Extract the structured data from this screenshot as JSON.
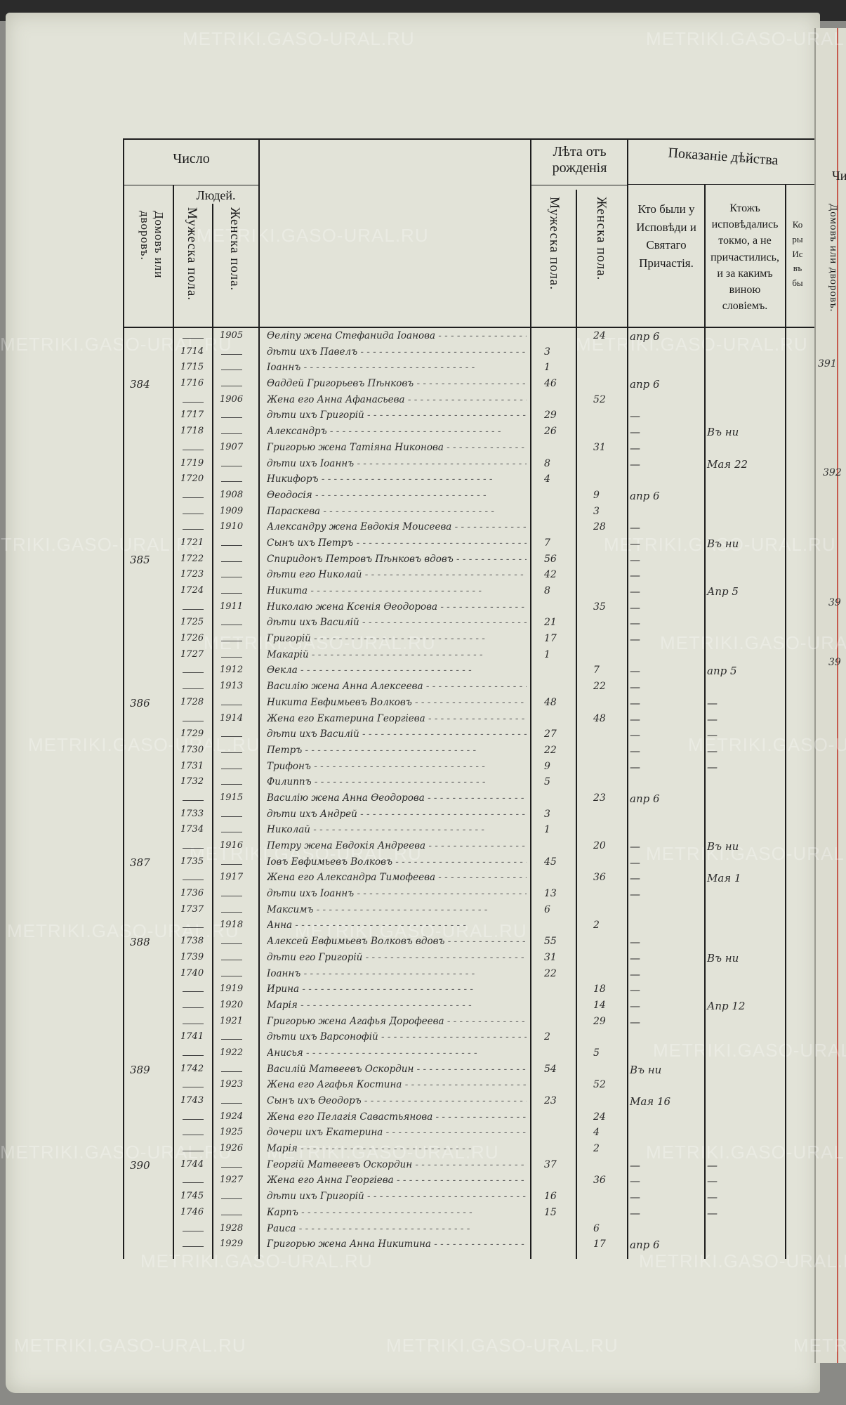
{
  "watermark": "METRIKI.GASO-URAL.RU",
  "header": {
    "chislo": "Число",
    "lyudey": "Людей.",
    "domov": "Домовъ или дворовъ.",
    "muzh": "Мужеска пола.",
    "zhen": "Женска пола.",
    "leta": "Лѣта отъ рожденія",
    "leta_muzh": "Мужеска пола.",
    "leta_zhen": "Женска пола.",
    "pokazanie": "Показаніе дѣйства",
    "kto_byli": "Кто были у Исповѣди и Святаго Причастія.",
    "ktozh": "Ктожъ исповѣдались токмо, а не причастились, и за какимъ виною словіемъ.",
    "koi_fragment": "Ко ры Ис въ бы"
  },
  "right_page": {
    "chislo_fragment": "Чи",
    "domov": "Домовъ или дворовъ.",
    "house_numbers": [
      "391",
      "392",
      "39",
      "39"
    ]
  },
  "rows": [
    {
      "h": "",
      "m": "",
      "f": "1905",
      "name": "Ѳеліпу жена Стефанида Іоанова",
      "ma": "",
      "fa": "24",
      "conf": "апр 6",
      "note": ""
    },
    {
      "h": "",
      "m": "1714",
      "f": "",
      "name": "дѣти ихъ Павелъ",
      "ma": "3",
      "fa": "",
      "conf": "",
      "note": ""
    },
    {
      "h": "",
      "m": "1715",
      "f": "",
      "name": "Іоаннъ",
      "ma": "1",
      "fa": "",
      "conf": "",
      "note": ""
    },
    {
      "h": "384",
      "m": "1716",
      "f": "",
      "name": "Ѳаддей Григорьевъ Пѣнковъ",
      "ma": "46",
      "fa": "",
      "conf": "апр 6",
      "note": ""
    },
    {
      "h": "",
      "m": "",
      "f": "1906",
      "name": "Жена его Анна Афанасьева",
      "ma": "",
      "fa": "52",
      "conf": "",
      "note": ""
    },
    {
      "h": "",
      "m": "1717",
      "f": "",
      "name": "дѣти ихъ Григорій",
      "ma": "29",
      "fa": "",
      "conf": "—",
      "note": ""
    },
    {
      "h": "",
      "m": "1718",
      "f": "",
      "name": "Александръ",
      "ma": "26",
      "fa": "",
      "conf": "—",
      "note": "Въ ни"
    },
    {
      "h": "",
      "m": "",
      "f": "1907",
      "name": "Григорью жена Татіяна Никонова",
      "ma": "",
      "fa": "31",
      "conf": "—",
      "note": ""
    },
    {
      "h": "",
      "m": "1719",
      "f": "",
      "name": "дѣти ихъ Іоаннъ",
      "ma": "8",
      "fa": "",
      "conf": "—",
      "note": "Мая 22"
    },
    {
      "h": "",
      "m": "1720",
      "f": "",
      "name": "Никифоръ",
      "ma": "4",
      "fa": "",
      "conf": "",
      "note": ""
    },
    {
      "h": "",
      "m": "",
      "f": "1908",
      "name": "Ѳеодосія",
      "ma": "",
      "fa": "9",
      "conf": "апр 6",
      "note": ""
    },
    {
      "h": "",
      "m": "",
      "f": "1909",
      "name": "Параскева",
      "ma": "",
      "fa": "3",
      "conf": "",
      "note": ""
    },
    {
      "h": "",
      "m": "",
      "f": "1910",
      "name": "Александру жена Евдокія Моисеева",
      "ma": "",
      "fa": "28",
      "conf": "—",
      "note": ""
    },
    {
      "h": "",
      "m": "1721",
      "f": "",
      "name": "Сынъ ихъ Петръ",
      "ma": "7",
      "fa": "",
      "conf": "—",
      "note": "Въ ни"
    },
    {
      "h": "385",
      "m": "1722",
      "f": "",
      "name": "Спиридонъ Петровъ Пѣнковъ вдовъ",
      "ma": "56",
      "fa": "",
      "conf": "—",
      "note": ""
    },
    {
      "h": "",
      "m": "1723",
      "f": "",
      "name": "дѣти его Николай",
      "ma": "42",
      "fa": "",
      "conf": "—",
      "note": ""
    },
    {
      "h": "",
      "m": "1724",
      "f": "",
      "name": "Никита",
      "ma": "8",
      "fa": "",
      "conf": "—",
      "note": "Апр 5"
    },
    {
      "h": "",
      "m": "",
      "f": "1911",
      "name": "Николаю жена Ксенія Ѳеодорова",
      "ma": "",
      "fa": "35",
      "conf": "—",
      "note": ""
    },
    {
      "h": "",
      "m": "1725",
      "f": "",
      "name": "дѣти ихъ Василій",
      "ma": "21",
      "fa": "",
      "conf": "—",
      "note": ""
    },
    {
      "h": "",
      "m": "1726",
      "f": "",
      "name": "Григорій",
      "ma": "17",
      "fa": "",
      "conf": "—",
      "note": ""
    },
    {
      "h": "",
      "m": "1727",
      "f": "",
      "name": "Макарій",
      "ma": "1",
      "fa": "",
      "conf": "",
      "note": ""
    },
    {
      "h": "",
      "m": "",
      "f": "1912",
      "name": "Ѳекла",
      "ma": "",
      "fa": "7",
      "conf": "—",
      "note": "апр 5"
    },
    {
      "h": "",
      "m": "",
      "f": "1913",
      "name": "Василію жена Анна Алексеева",
      "ma": "",
      "fa": "22",
      "conf": "—",
      "note": ""
    },
    {
      "h": "386",
      "m": "1728",
      "f": "",
      "name": "Никита Евфимьевъ Волковъ",
      "ma": "48",
      "fa": "",
      "conf": "—",
      "note": "—"
    },
    {
      "h": "",
      "m": "",
      "f": "1914",
      "name": "Жена его Екатерина Георгіева",
      "ma": "",
      "fa": "48",
      "conf": "—",
      "note": "—"
    },
    {
      "h": "",
      "m": "1729",
      "f": "",
      "name": "дѣти ихъ Василій",
      "ma": "27",
      "fa": "",
      "conf": "—",
      "note": "—"
    },
    {
      "h": "",
      "m": "1730",
      "f": "",
      "name": "Петръ",
      "ma": "22",
      "fa": "",
      "conf": "—",
      "note": "—"
    },
    {
      "h": "",
      "m": "1731",
      "f": "",
      "name": "Трифонъ",
      "ma": "9",
      "fa": "",
      "conf": "—",
      "note": "—"
    },
    {
      "h": "",
      "m": "1732",
      "f": "",
      "name": "Филиппъ",
      "ma": "5",
      "fa": "",
      "conf": "",
      "note": ""
    },
    {
      "h": "",
      "m": "",
      "f": "1915",
      "name": "Василію жена Анна Ѳеодорова",
      "ma": "",
      "fa": "23",
      "conf": "апр 6",
      "note": ""
    },
    {
      "h": "",
      "m": "1733",
      "f": "",
      "name": "дѣти ихъ Андрей",
      "ma": "3",
      "fa": "",
      "conf": "",
      "note": ""
    },
    {
      "h": "",
      "m": "1734",
      "f": "",
      "name": "Николай",
      "ma": "1",
      "fa": "",
      "conf": "",
      "note": ""
    },
    {
      "h": "",
      "m": "",
      "f": "1916",
      "name": "Петру жена Евдокія Андреева",
      "ma": "",
      "fa": "20",
      "conf": "—",
      "note": "Въ ни"
    },
    {
      "h": "387",
      "m": "1735",
      "f": "",
      "name": "Іовъ Евфимьевъ Волковъ",
      "ma": "45",
      "fa": "",
      "conf": "—",
      "note": ""
    },
    {
      "h": "",
      "m": "",
      "f": "1917",
      "name": "Жена его Александра Тимофеева",
      "ma": "",
      "fa": "36",
      "conf": "—",
      "note": "Мая 1"
    },
    {
      "h": "",
      "m": "1736",
      "f": "",
      "name": "дѣти ихъ Іоаннъ",
      "ma": "13",
      "fa": "",
      "conf": "—",
      "note": ""
    },
    {
      "h": "",
      "m": "1737",
      "f": "",
      "name": "Максимъ",
      "ma": "6",
      "fa": "",
      "conf": "",
      "note": ""
    },
    {
      "h": "",
      "m": "",
      "f": "1918",
      "name": "Анна",
      "ma": "",
      "fa": "2",
      "conf": "",
      "note": ""
    },
    {
      "h": "388",
      "m": "1738",
      "f": "",
      "name": "Алексей Евфимьевъ Волковъ вдовъ",
      "ma": "55",
      "fa": "",
      "conf": "—",
      "note": ""
    },
    {
      "h": "",
      "m": "1739",
      "f": "",
      "name": "дѣти его Григорій",
      "ma": "31",
      "fa": "",
      "conf": "—",
      "note": "Въ ни"
    },
    {
      "h": "",
      "m": "1740",
      "f": "",
      "name": "Іоаннъ",
      "ma": "22",
      "fa": "",
      "conf": "—",
      "note": ""
    },
    {
      "h": "",
      "m": "",
      "f": "1919",
      "name": "Ирина",
      "ma": "",
      "fa": "18",
      "conf": "—",
      "note": ""
    },
    {
      "h": "",
      "m": "",
      "f": "1920",
      "name": "Марія",
      "ma": "",
      "fa": "14",
      "conf": "—",
      "note": "Апр 12"
    },
    {
      "h": "",
      "m": "",
      "f": "1921",
      "name": "Григорью жена Агафья Дорофеева",
      "ma": "",
      "fa": "29",
      "conf": "—",
      "note": ""
    },
    {
      "h": "",
      "m": "1741",
      "f": "",
      "name": "дѣти ихъ Варсонофій",
      "ma": "2",
      "fa": "",
      "conf": "",
      "note": ""
    },
    {
      "h": "",
      "m": "",
      "f": "1922",
      "name": "Анисья",
      "ma": "",
      "fa": "5",
      "conf": "",
      "note": ""
    },
    {
      "h": "389",
      "m": "1742",
      "f": "",
      "name": "Василій Матвеевъ Оскордин",
      "ma": "54",
      "fa": "",
      "conf": "Въ ни",
      "note": ""
    },
    {
      "h": "",
      "m": "",
      "f": "1923",
      "name": "Жена его Агафья Костина",
      "ma": "",
      "fa": "52",
      "conf": "",
      "note": ""
    },
    {
      "h": "",
      "m": "1743",
      "f": "",
      "name": "Сынъ ихъ Ѳеодоръ",
      "ma": "23",
      "fa": "",
      "conf": "Мая 16",
      "note": ""
    },
    {
      "h": "",
      "m": "",
      "f": "1924",
      "name": "Жена его Пелагія Савастьянова",
      "ma": "",
      "fa": "24",
      "conf": "",
      "note": ""
    },
    {
      "h": "",
      "m": "",
      "f": "1925",
      "name": "дочери ихъ Екатерина",
      "ma": "",
      "fa": "4",
      "conf": "",
      "note": ""
    },
    {
      "h": "",
      "m": "",
      "f": "1926",
      "name": "Марія",
      "ma": "",
      "fa": "2",
      "conf": "",
      "note": ""
    },
    {
      "h": "390",
      "m": "1744",
      "f": "",
      "name": "Георгій Матвеевъ Оскордин",
      "ma": "37",
      "fa": "",
      "conf": "—",
      "note": "—"
    },
    {
      "h": "",
      "m": "",
      "f": "1927",
      "name": "Жена его Анна Георгіева",
      "ma": "",
      "fa": "36",
      "conf": "—",
      "note": "—"
    },
    {
      "h": "",
      "m": "1745",
      "f": "",
      "name": "дѣти ихъ Григорій",
      "ma": "16",
      "fa": "",
      "conf": "—",
      "note": "—"
    },
    {
      "h": "",
      "m": "1746",
      "f": "",
      "name": "Карпъ",
      "ma": "15",
      "fa": "",
      "conf": "—",
      "note": "—"
    },
    {
      "h": "",
      "m": "",
      "f": "1928",
      "name": "Раиса",
      "ma": "",
      "fa": "6",
      "conf": "",
      "note": ""
    },
    {
      "h": "",
      "m": "",
      "f": "1929",
      "name": "Григорью жена Анна Никитина",
      "ma": "",
      "fa": "17",
      "conf": "апр 6",
      "note": ""
    }
  ]
}
